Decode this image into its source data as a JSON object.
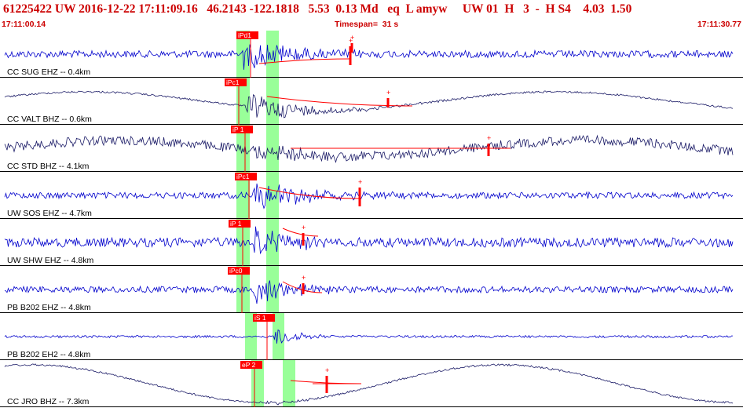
{
  "header": {
    "event_id": "61225422",
    "network": "UW",
    "datetime": "2016-12-22 17:11:09.16",
    "lat": "46.2143",
    "lon": "-122.1818",
    "depth": "5.53",
    "mag": "0.13 Md",
    "etype": "eq",
    "flag": "L amyw",
    "src": "UW 01",
    "quality": "H",
    "n1": "3",
    "dash": "-",
    "hs": "H S4",
    "n2": "4.03",
    "n3": "1.50",
    "start_time": "17:11:00.14",
    "timespan": "Timespan=  31 s",
    "end_time": "17:11:30.77"
  },
  "colors": {
    "header_red": "#cc0000",
    "trace_blue": "#0000cc",
    "trace_navy": "#1a1a66",
    "pick_red": "#ff0000",
    "window_green": "#99ff99"
  },
  "panels": [
    {
      "label": "CC SUG EHZ -- 0.4km",
      "pick": "iPd1"
    },
    {
      "label": "CC VALT BHZ -- 0.6km",
      "pick": "iPc1"
    },
    {
      "label": "CC STD BHZ -- 4.1km",
      "pick": "iP 1"
    },
    {
      "label": "UW SOS EHZ -- 4.7km",
      "pick": "iPc1"
    },
    {
      "label": "UW SHW EHZ -- 4.8km",
      "pick": "iP 1"
    },
    {
      "label": "PB B202 EHZ -- 4.8km",
      "pick": "iPc0"
    },
    {
      "label": "PB B202 EH2 -- 4.8km",
      "pick": "iS 1"
    },
    {
      "label": "CC JRO BHZ -- 7.3km",
      "pick": "eP 2"
    }
  ]
}
